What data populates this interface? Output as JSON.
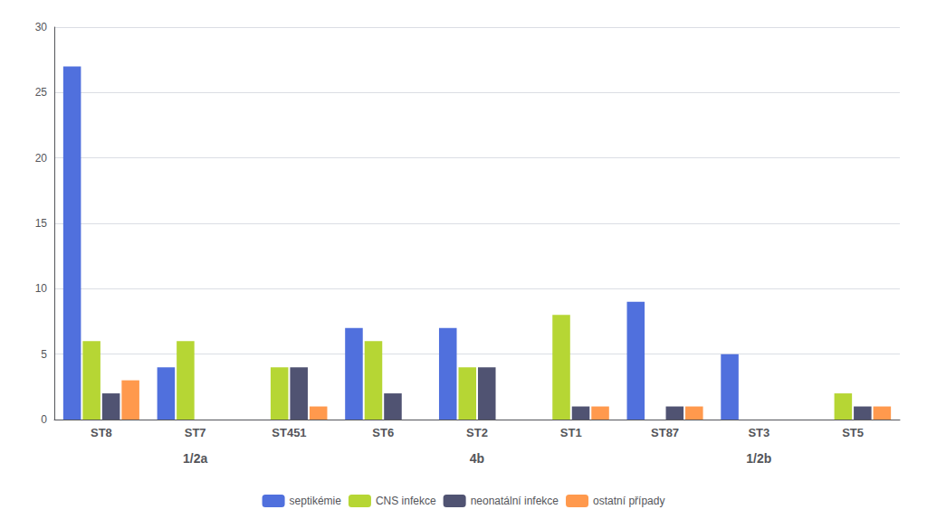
{
  "chart_data": {
    "type": "bar",
    "categories": [
      "ST8",
      "ST7",
      "ST451",
      "ST6",
      "ST2",
      "ST1",
      "ST87",
      "ST3",
      "ST5"
    ],
    "series": [
      {
        "name": "septikémie",
        "values": [
          27,
          4,
          0,
          7,
          7,
          0,
          9,
          5,
          0
        ]
      },
      {
        "name": "CNS infekce",
        "values": [
          6,
          6,
          4,
          6,
          4,
          8,
          0,
          0,
          2
        ]
      },
      {
        "name": "neonatální infekce",
        "values": [
          2,
          0,
          4,
          2,
          4,
          1,
          1,
          0,
          1
        ]
      },
      {
        "name": "ostatní případy",
        "values": [
          3,
          0,
          1,
          0,
          0,
          1,
          1,
          0,
          1
        ]
      }
    ],
    "annotations": [
      {
        "text": "1/2a",
        "categories": [
          "ST8",
          "ST7",
          "ST451"
        ]
      },
      {
        "text": "4b",
        "categories": [
          "ST6",
          "ST2",
          "ST1"
        ]
      },
      {
        "text": "1/2b",
        "categories": [
          "ST87",
          "ST3",
          "ST5"
        ]
      }
    ],
    "ylim": [
      0,
      30
    ],
    "yticks": [
      0,
      5,
      10,
      15,
      20,
      25,
      30
    ],
    "grid": true,
    "legend": "bottom"
  }
}
